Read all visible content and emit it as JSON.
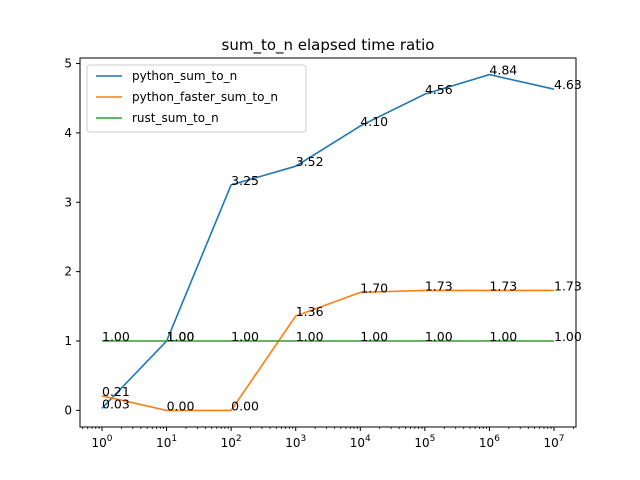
{
  "chart_data": {
    "type": "line",
    "title": "sum_to_n elapsed time ratio",
    "xlabel": "",
    "ylabel": "",
    "x": [
      1,
      10,
      100,
      1000,
      10000,
      100000,
      1000000,
      10000000
    ],
    "x_scale": "log",
    "x_tick_labels": [
      {
        "base": "10",
        "exp": "0"
      },
      {
        "base": "10",
        "exp": "1"
      },
      {
        "base": "10",
        "exp": "2"
      },
      {
        "base": "10",
        "exp": "3"
      },
      {
        "base": "10",
        "exp": "4"
      },
      {
        "base": "10",
        "exp": "5"
      },
      {
        "base": "10",
        "exp": "6"
      },
      {
        "base": "10",
        "exp": "7"
      }
    ],
    "y_ticks": [
      "0",
      "1",
      "2",
      "3",
      "4",
      "5"
    ],
    "ylim": [
      -0.24,
      5.08
    ],
    "grid": false,
    "legend_position": "upper-left",
    "series": [
      {
        "name": "python_sum_to_n",
        "color": "#1f77b4",
        "values": [
          0.03,
          1.0,
          3.25,
          3.52,
          4.1,
          4.56,
          4.84,
          4.63
        ],
        "labels": [
          "0.03",
          "1.00",
          "3.25",
          "3.52",
          "4.10",
          "4.56",
          "4.84",
          "4.63"
        ]
      },
      {
        "name": "python_faster_sum_to_n",
        "color": "#ff7f0e",
        "values": [
          0.21,
          0.0,
          0.0,
          1.36,
          1.7,
          1.73,
          1.73,
          1.73
        ],
        "labels": [
          "0.21",
          "0.00",
          "0.00",
          "1.36",
          "1.70",
          "1.73",
          "1.73",
          "1.73"
        ]
      },
      {
        "name": "rust_sum_to_n",
        "color": "#2ca02c",
        "values": [
          1.0,
          1.0,
          1.0,
          1.0,
          1.0,
          1.0,
          1.0,
          1.0
        ],
        "labels": [
          "1.00",
          "1.00",
          "1.00",
          "1.00",
          "1.00",
          "1.00",
          "1.00",
          "1.00"
        ]
      }
    ]
  }
}
